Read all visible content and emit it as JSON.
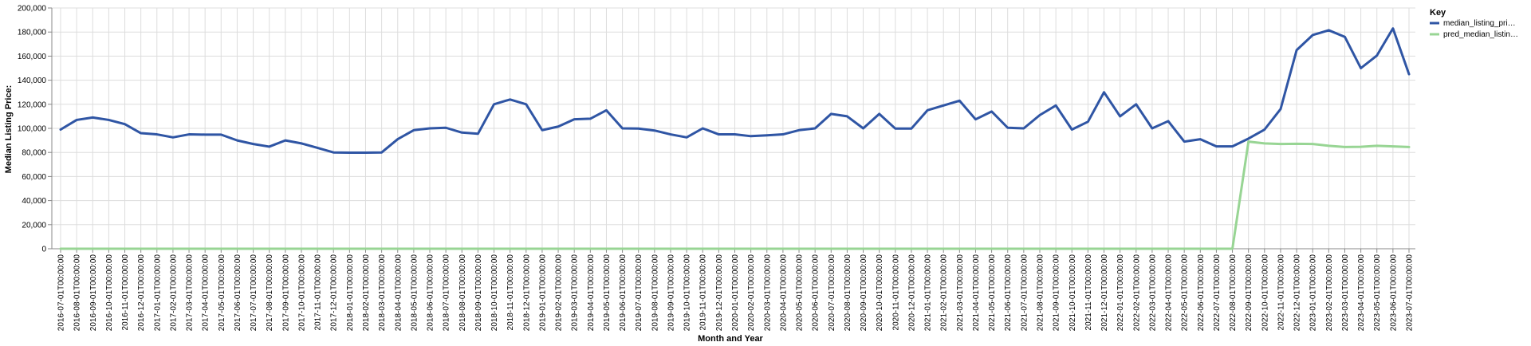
{
  "chart_data": {
    "type": "line",
    "title": "",
    "xlabel": "Month and Year",
    "ylabel": "Median Listing Price:",
    "ylim": [
      0,
      200000
    ],
    "yticks": [
      0,
      20000,
      40000,
      60000,
      80000,
      100000,
      120000,
      140000,
      160000,
      180000,
      200000
    ],
    "ytick_labels": [
      "0",
      "20,000",
      "40,000",
      "60,000",
      "80,000",
      "100,000",
      "120,000",
      "140,000",
      "160,000",
      "180,000",
      "200,000"
    ],
    "grid": true,
    "legend": {
      "title": "Key",
      "position": "top-right",
      "entries": [
        "median_listing_pri…",
        "pred_median_listin…"
      ]
    },
    "categories": [
      "2016-07-01T00:00:00",
      "2016-08-01T00:00:00",
      "2016-09-01T00:00:00",
      "2016-10-01T00:00:00",
      "2016-11-01T00:00:00",
      "2016-12-01T00:00:00",
      "2017-01-01T00:00:00",
      "2017-02-01T00:00:00",
      "2017-03-01T00:00:00",
      "2017-04-01T00:00:00",
      "2017-05-01T00:00:00",
      "2017-06-01T00:00:00",
      "2017-07-01T00:00:00",
      "2017-08-01T00:00:00",
      "2017-09-01T00:00:00",
      "2017-10-01T00:00:00",
      "2017-11-01T00:00:00",
      "2017-12-01T00:00:00",
      "2018-01-01T00:00:00",
      "2018-02-01T00:00:00",
      "2018-03-01T00:00:00",
      "2018-04-01T00:00:00",
      "2018-05-01T00:00:00",
      "2018-06-01T00:00:00",
      "2018-07-01T00:00:00",
      "2018-08-01T00:00:00",
      "2018-09-01T00:00:00",
      "2018-10-01T00:00:00",
      "2018-11-01T00:00:00",
      "2018-12-01T00:00:00",
      "2019-01-01T00:00:00",
      "2019-02-01T00:00:00",
      "2019-03-01T00:00:00",
      "2019-04-01T00:00:00",
      "2019-05-01T00:00:00",
      "2019-06-01T00:00:00",
      "2019-07-01T00:00:00",
      "2019-08-01T00:00:00",
      "2019-09-01T00:00:00",
      "2019-10-01T00:00:00",
      "2019-11-01T00:00:00",
      "2019-12-01T00:00:00",
      "2020-01-01T00:00:00",
      "2020-02-01T00:00:00",
      "2020-03-01T00:00:00",
      "2020-04-01T00:00:00",
      "2020-05-01T00:00:00",
      "2020-06-01T00:00:00",
      "2020-07-01T00:00:00",
      "2020-08-01T00:00:00",
      "2020-09-01T00:00:00",
      "2020-10-01T00:00:00",
      "2020-11-01T00:00:00",
      "2020-12-01T00:00:00",
      "2021-01-01T00:00:00",
      "2021-02-01T00:00:00",
      "2021-03-01T00:00:00",
      "2021-04-01T00:00:00",
      "2021-05-01T00:00:00",
      "2021-06-01T00:00:00",
      "2021-07-01T00:00:00",
      "2021-08-01T00:00:00",
      "2021-09-01T00:00:00",
      "2021-10-01T00:00:00",
      "2021-11-01T00:00:00",
      "2021-12-01T00:00:00",
      "2022-01-01T00:00:00",
      "2022-02-01T00:00:00",
      "2022-03-01T00:00:00",
      "2022-04-01T00:00:00",
      "2022-05-01T00:00:00",
      "2022-06-01T00:00:00",
      "2022-07-01T00:00:00",
      "2022-08-01T00:00:00",
      "2022-09-01T00:00:00",
      "2022-10-01T00:00:00",
      "2022-11-01T00:00:00",
      "2022-12-01T00:00:00",
      "2023-01-01T00:00:00",
      "2023-02-01T00:00:00",
      "2023-03-01T00:00:00",
      "2023-04-01T00:00:00",
      "2023-05-01T00:00:00",
      "2023-06-01T00:00:00",
      "2023-07-01T00:00:00"
    ],
    "series": [
      {
        "name": "median_listing_pri…",
        "color": "#2f55a4",
        "values": [
          99000,
          107000,
          109000,
          107000,
          103500,
          96000,
          95000,
          92500,
          95000,
          94800,
          94800,
          90000,
          87000,
          84800,
          90000,
          87500,
          83800,
          80000,
          79800,
          79800,
          80000,
          91000,
          98500,
          100000,
          100500,
          96500,
          95500,
          120000,
          124000,
          120000,
          98500,
          101500,
          107500,
          108000,
          115000,
          100000,
          99800,
          98200,
          95000,
          92500,
          100000,
          95000,
          95000,
          93500,
          94200,
          95000,
          98500,
          100000,
          112000,
          110000,
          100000,
          112000,
          99800,
          99800,
          115000,
          119000,
          123000,
          107500,
          114000,
          100500,
          100000,
          111000,
          119000,
          99000,
          105500,
          130000,
          110000,
          120000,
          100000,
          106000,
          89000,
          91000,
          85000,
          85000,
          91500,
          99000,
          116000,
          165000,
          177500,
          181500,
          176000,
          150000,
          160500,
          183000,
          145000
        ]
      },
      {
        "name": "pred_median_listin…",
        "color": "#98d594",
        "values": [
          0,
          0,
          0,
          0,
          0,
          0,
          0,
          0,
          0,
          0,
          0,
          0,
          0,
          0,
          0,
          0,
          0,
          0,
          0,
          0,
          0,
          0,
          0,
          0,
          0,
          0,
          0,
          0,
          0,
          0,
          0,
          0,
          0,
          0,
          0,
          0,
          0,
          0,
          0,
          0,
          0,
          0,
          0,
          0,
          0,
          0,
          0,
          0,
          0,
          0,
          0,
          0,
          0,
          0,
          0,
          0,
          0,
          0,
          0,
          0,
          0,
          0,
          0,
          0,
          0,
          0,
          0,
          0,
          0,
          0,
          0,
          0,
          0,
          0,
          89000,
          87500,
          87000,
          87200,
          87000,
          85500,
          84500,
          84700,
          85500,
          85000,
          84500
        ]
      }
    ]
  }
}
